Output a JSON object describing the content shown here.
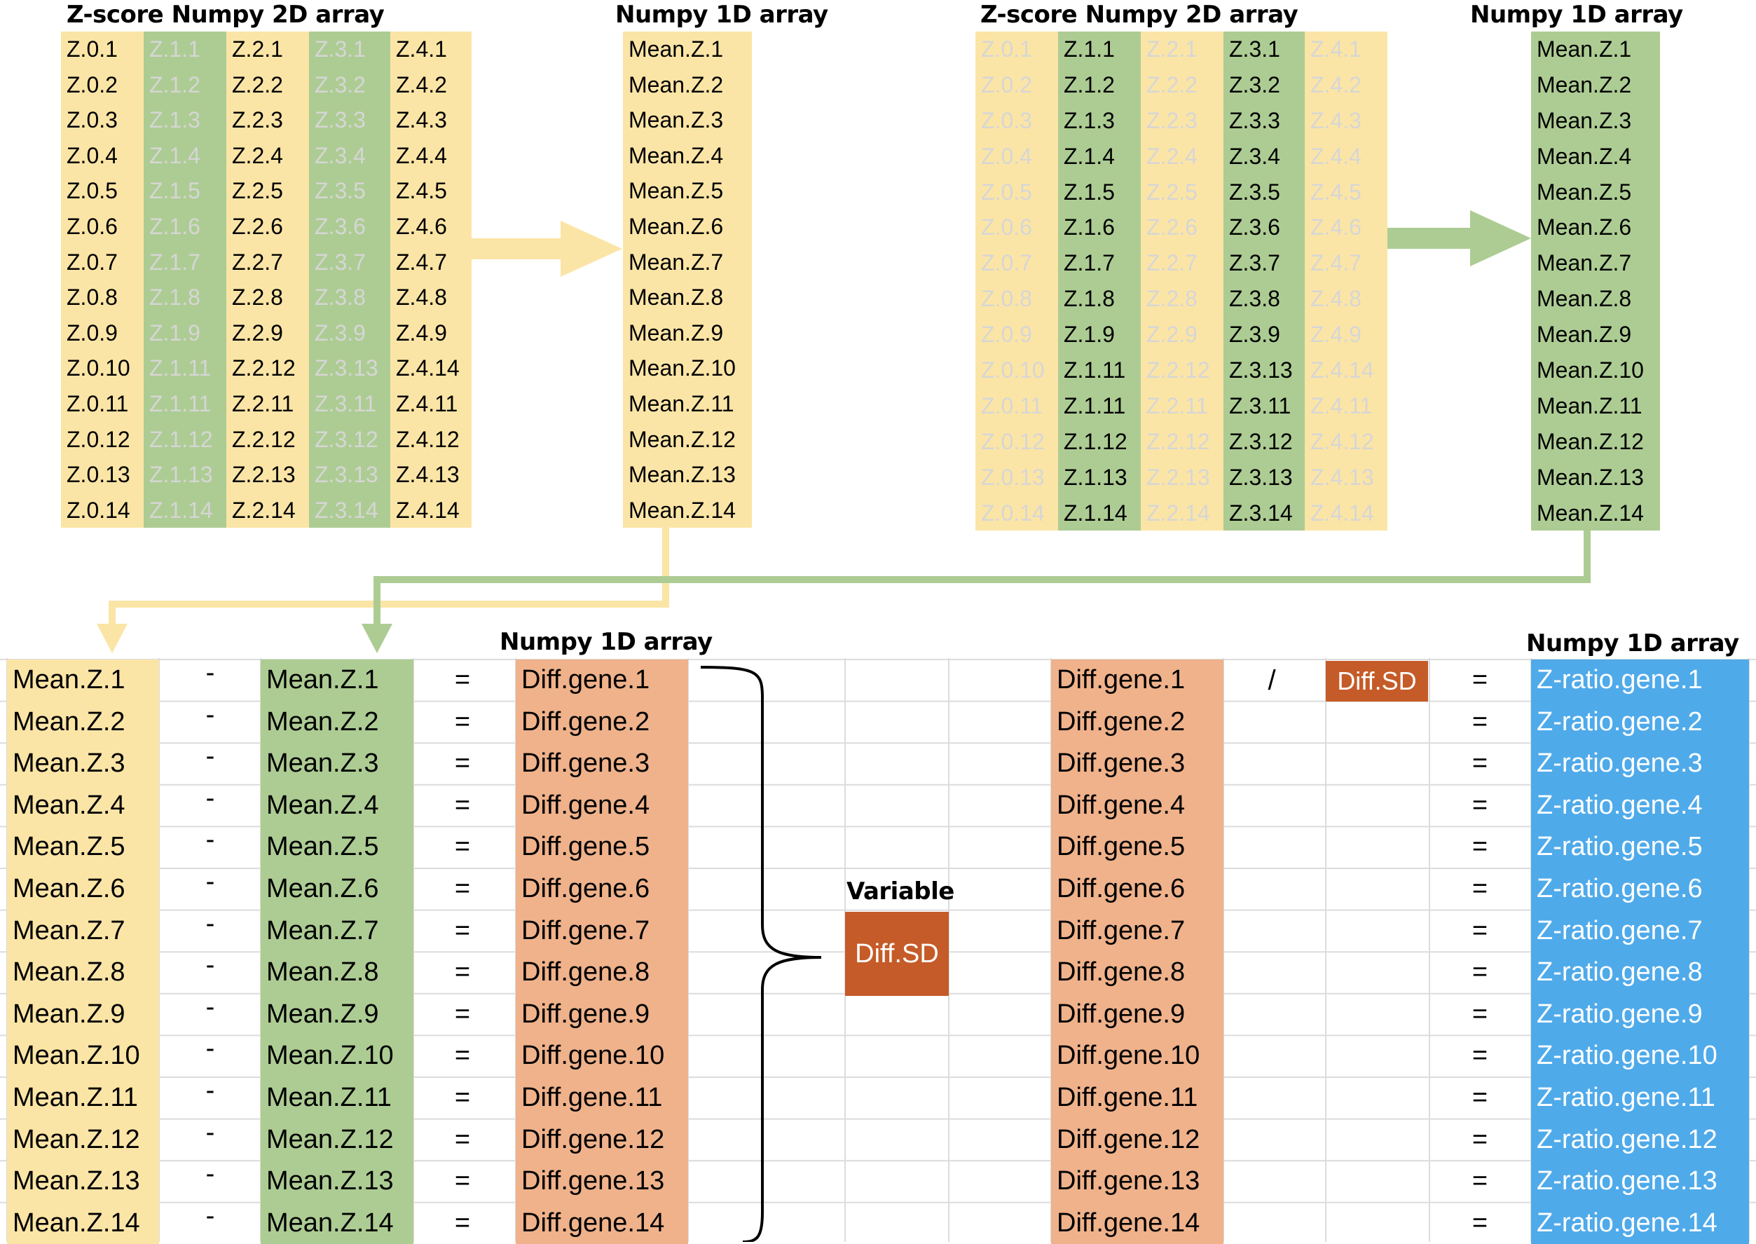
{
  "top_left": {
    "zscore_title": "Z-score Numpy 2D array",
    "mean_title": "Numpy 1D array",
    "columns": [
      {
        "cells": [
          "Z.0.1",
          "Z.0.2",
          "Z.0.3",
          "Z.0.4",
          "Z.0.5",
          "Z.0.6",
          "Z.0.7",
          "Z.0.8",
          "Z.0.9",
          "Z.0.10",
          "Z.0.11",
          "Z.0.12",
          "Z.0.13",
          "Z.0.14"
        ]
      },
      {
        "cells": [
          "Z.1.1",
          "Z.1.2",
          "Z.1.3",
          "Z.1.4",
          "Z.1.5",
          "Z.1.6",
          "Z.1.7",
          "Z.1.8",
          "Z.1.9",
          "Z.1.11",
          "Z.1.11",
          "Z.1.12",
          "Z.1.13",
          "Z.1.14"
        ]
      },
      {
        "cells": [
          "Z.2.1",
          "Z.2.2",
          "Z.2.3",
          "Z.2.4",
          "Z.2.5",
          "Z.2.6",
          "Z.2.7",
          "Z.2.8",
          "Z.2.9",
          "Z.2.12",
          "Z.2.11",
          "Z.2.12",
          "Z.2.13",
          "Z.2.14"
        ]
      },
      {
        "cells": [
          "Z.3.1",
          "Z.3.2",
          "Z.3.3",
          "Z.3.4",
          "Z.3.5",
          "Z.3.6",
          "Z.3.7",
          "Z.3.8",
          "Z.3.9",
          "Z.3.13",
          "Z.3.11",
          "Z.3.12",
          "Z.3.13",
          "Z.3.14"
        ]
      },
      {
        "cells": [
          "Z.4.1",
          "Z.4.2",
          "Z.4.3",
          "Z.4.4",
          "Z.4.5",
          "Z.4.6",
          "Z.4.7",
          "Z.4.8",
          "Z.4.9",
          "Z.4.14",
          "Z.4.11",
          "Z.4.12",
          "Z.4.13",
          "Z.4.14"
        ]
      }
    ],
    "means": [
      "Mean.Z.1",
      "Mean.Z.2",
      "Mean.Z.3",
      "Mean.Z.4",
      "Mean.Z.5",
      "Mean.Z.6",
      "Mean.Z.7",
      "Mean.Z.8",
      "Mean.Z.9",
      "Mean.Z.10",
      "Mean.Z.11",
      "Mean.Z.12",
      "Mean.Z.13",
      "Mean.Z.14"
    ]
  },
  "top_right": {
    "zscore_title": "Z-score Numpy 2D array",
    "mean_title": "Numpy 1D array",
    "columns": [
      {
        "cells": [
          "Z.0.1",
          "Z.0.2",
          "Z.0.3",
          "Z.0.4",
          "Z.0.5",
          "Z.0.6",
          "Z.0.7",
          "Z.0.8",
          "Z.0.9",
          "Z.0.10",
          "Z.0.11",
          "Z.0.12",
          "Z.0.13",
          "Z.0.14"
        ]
      },
      {
        "cells": [
          "Z.1.1",
          "Z.1.2",
          "Z.1.3",
          "Z.1.4",
          "Z.1.5",
          "Z.1.6",
          "Z.1.7",
          "Z.1.8",
          "Z.1.9",
          "Z.1.11",
          "Z.1.11",
          "Z.1.12",
          "Z.1.13",
          "Z.1.14"
        ]
      },
      {
        "cells": [
          "Z.2.1",
          "Z.2.2",
          "Z.2.3",
          "Z.2.4",
          "Z.2.5",
          "Z.2.6",
          "Z.2.7",
          "Z.2.8",
          "Z.2.9",
          "Z.2.12",
          "Z.2.11",
          "Z.2.12",
          "Z.2.13",
          "Z.2.14"
        ]
      },
      {
        "cells": [
          "Z.3.1",
          "Z.3.2",
          "Z.3.3",
          "Z.3.4",
          "Z.3.5",
          "Z.3.6",
          "Z.3.7",
          "Z.3.8",
          "Z.3.9",
          "Z.3.13",
          "Z.3.11",
          "Z.3.12",
          "Z.3.13",
          "Z.3.14"
        ]
      },
      {
        "cells": [
          "Z.4.1",
          "Z.4.2",
          "Z.4.3",
          "Z.4.4",
          "Z.4.5",
          "Z.4.6",
          "Z.4.7",
          "Z.4.8",
          "Z.4.9",
          "Z.4.14",
          "Z.4.11",
          "Z.4.12",
          "Z.4.13",
          "Z.4.14"
        ]
      }
    ],
    "means": [
      "Mean.Z.1",
      "Mean.Z.2",
      "Mean.Z.3",
      "Mean.Z.4",
      "Mean.Z.5",
      "Mean.Z.6",
      "Mean.Z.7",
      "Mean.Z.8",
      "Mean.Z.9",
      "Mean.Z.10",
      "Mean.Z.11",
      "Mean.Z.12",
      "Mean.Z.13",
      "Mean.Z.14"
    ]
  },
  "bottom_left": {
    "diff_title": "Numpy 1D array",
    "mean_a": [
      "Mean.Z.1",
      "Mean.Z.2",
      "Mean.Z.3",
      "Mean.Z.4",
      "Mean.Z.5",
      "Mean.Z.6",
      "Mean.Z.7",
      "Mean.Z.8",
      "Mean.Z.9",
      "Mean.Z.10",
      "Mean.Z.11",
      "Mean.Z.12",
      "Mean.Z.13",
      "Mean.Z.14"
    ],
    "minus_symbol": "-",
    "mean_b": [
      "Mean.Z.1",
      "Mean.Z.2",
      "Mean.Z.3",
      "Mean.Z.4",
      "Mean.Z.5",
      "Mean.Z.6",
      "Mean.Z.7",
      "Mean.Z.8",
      "Mean.Z.9",
      "Mean.Z.10",
      "Mean.Z.11",
      "Mean.Z.12",
      "Mean.Z.13",
      "Mean.Z.14"
    ],
    "equals_symbol": "=",
    "diffs": [
      "Diff.gene.1",
      "Diff.gene.2",
      "Diff.gene.3",
      "Diff.gene.4",
      "Diff.gene.5",
      "Diff.gene.6",
      "Diff.gene.7",
      "Diff.gene.8",
      "Diff.gene.9",
      "Diff.gene.10",
      "Diff.gene.11",
      "Diff.gene.12",
      "Diff.gene.13",
      "Diff.gene.14"
    ]
  },
  "variable": {
    "title": "Variable",
    "value": "Diff.SD"
  },
  "bottom_right": {
    "ratio_title": "Numpy 1D array",
    "diffs": [
      "Diff.gene.1",
      "Diff.gene.2",
      "Diff.gene.3",
      "Diff.gene.4",
      "Diff.gene.5",
      "Diff.gene.6",
      "Diff.gene.7",
      "Diff.gene.8",
      "Diff.gene.9",
      "Diff.gene.10",
      "Diff.gene.11",
      "Diff.gene.12",
      "Diff.gene.13",
      "Diff.gene.14"
    ],
    "divide_symbol": "/",
    "divisor": "Diff.SD",
    "equals_symbol": "=",
    "ratios": [
      "Z-ratio.gene.1",
      "Z-ratio.gene.2",
      "Z-ratio.gene.3",
      "Z-ratio.gene.4",
      "Z-ratio.gene.5",
      "Z-ratio.gene.6",
      "Z-ratio.gene.7",
      "Z-ratio.gene.8",
      "Z-ratio.gene.9",
      "Z-ratio.gene.10",
      "Z-ratio.gene.11",
      "Z-ratio.gene.12",
      "Z-ratio.gene.13",
      "Z-ratio.gene.14"
    ]
  },
  "colors": {
    "yellow": "#fbe5a6",
    "green": "#adcc93",
    "orange": "#efb28b",
    "rust": "#c55b28",
    "blue": "#4faaea",
    "dim_text": "#d6d6d6",
    "grid_line": "#dcdcdc"
  }
}
